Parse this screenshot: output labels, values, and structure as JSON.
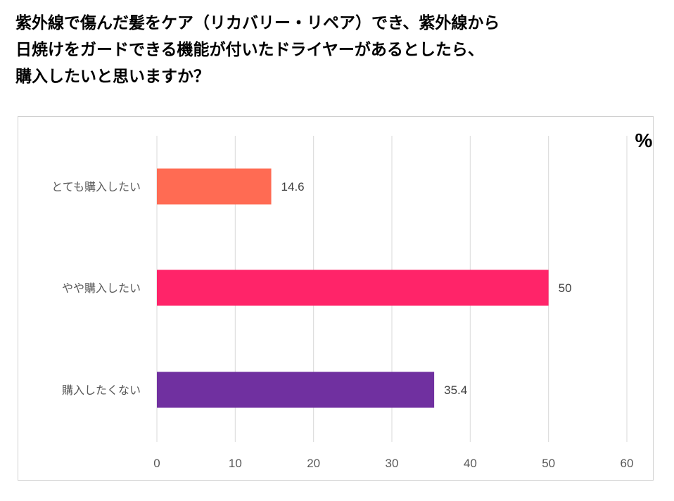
{
  "question": "紫外線で傷んだ髪をケア（リカバリー・リペア）でき、紫外線から\n日焼けをガードできる機能が付いたドライヤーがあるとしたら、\n購入したいと思いますか？",
  "chart_data": {
    "type": "bar",
    "orientation": "horizontal",
    "categories": [
      "とても購入したい",
      "やや購入したい",
      "購入したくない"
    ],
    "values": [
      14.6,
      50,
      35.4
    ],
    "value_labels": [
      "14.6",
      "50",
      "35.4"
    ],
    "colors": [
      "#ff6b53",
      "#ff2469",
      "#7030a0"
    ],
    "unit": "%",
    "xlim": [
      0,
      60
    ],
    "x_ticks": [
      0,
      10,
      20,
      30,
      40,
      50,
      60
    ],
    "grid": true,
    "legend": "none"
  }
}
